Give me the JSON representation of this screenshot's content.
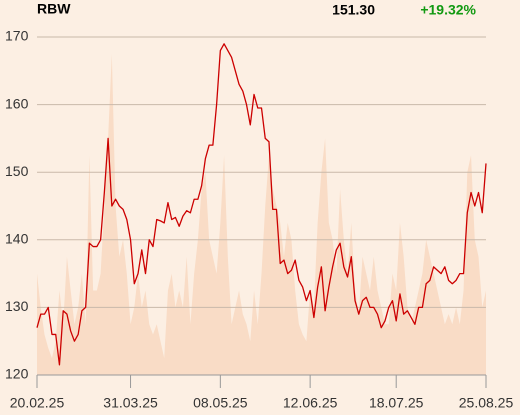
{
  "chart_data": {
    "type": "line",
    "title": "RBW",
    "last_price": "151.30",
    "change": "+19.32%",
    "change_color": "#119911",
    "categories": [
      "20.02.25",
      null,
      null,
      null,
      null,
      null,
      null,
      null,
      null,
      null,
      null,
      null,
      null,
      null,
      null,
      null,
      null,
      null,
      null,
      null,
      null,
      null,
      null,
      null,
      null,
      "31.03.25",
      null,
      null,
      null,
      null,
      null,
      null,
      null,
      null,
      null,
      null,
      null,
      null,
      null,
      null,
      null,
      null,
      null,
      null,
      null,
      null,
      null,
      null,
      null,
      "08.05.25",
      null,
      null,
      null,
      null,
      null,
      null,
      null,
      null,
      null,
      null,
      null,
      null,
      null,
      null,
      null,
      null,
      null,
      null,
      null,
      null,
      null,
      null,
      null,
      "12.06.25",
      null,
      null,
      null,
      null,
      null,
      null,
      null,
      null,
      null,
      null,
      null,
      null,
      null,
      null,
      null,
      null,
      null,
      null,
      null,
      null,
      null,
      null,
      "18.07.25",
      null,
      null,
      null,
      null,
      null,
      null,
      null,
      null,
      null,
      null,
      null,
      null,
      null,
      null,
      null,
      null,
      null,
      null,
      null,
      null,
      null,
      null,
      null,
      "25.08.25"
    ],
    "series": [
      {
        "name": "RBW",
        "color": "#cc0000",
        "values": [
          127,
          129,
          129,
          130,
          126,
          126,
          121.5,
          129.5,
          129,
          126.5,
          125,
          126,
          129.5,
          130,
          139.5,
          139,
          139,
          140,
          147,
          155,
          145,
          146,
          145,
          144.5,
          143,
          140,
          133.5,
          135,
          138.5,
          135,
          140,
          139,
          143,
          142.8,
          142.5,
          145.5,
          143,
          143.3,
          142,
          143.5,
          144.3,
          144,
          146,
          146,
          148,
          152,
          154,
          154,
          160,
          168,
          169,
          168,
          167,
          165,
          163,
          162,
          160,
          157,
          161.5,
          159.5,
          159.5,
          155,
          154.5,
          144.5,
          144.5,
          136.5,
          137,
          135,
          135.5,
          137,
          134,
          133,
          131,
          132.5,
          128.5,
          133,
          136,
          129.5,
          133,
          136,
          138.5,
          139.5,
          136,
          134.5,
          137.5,
          131,
          129,
          131,
          131.5,
          130,
          130,
          129,
          127,
          128,
          130,
          131,
          128,
          132,
          129,
          129.5,
          128.5,
          127.5,
          130,
          130,
          133.5,
          134,
          136,
          135.5,
          135,
          136,
          134,
          133.5,
          134,
          135,
          135,
          144,
          147,
          145,
          147,
          144,
          151.3
        ]
      },
      {
        "name": "Volume",
        "color": "#f9dcc6",
        "axis": "y2",
        "values": [
          30,
          20,
          12,
          8,
          5,
          10,
          25,
          15,
          35,
          25,
          15,
          20,
          30,
          15,
          65,
          25,
          25,
          30,
          50,
          70,
          95,
          50,
          35,
          40,
          30,
          15,
          20,
          30,
          20,
          25,
          15,
          12,
          15,
          10,
          5,
          25,
          30,
          20,
          25,
          20,
          35,
          15,
          30,
          40,
          55,
          60,
          40,
          35,
          30,
          45,
          65,
          35,
          15,
          20,
          25,
          18,
          15,
          10,
          25,
          15,
          30,
          50,
          65,
          55,
          50,
          45,
          35,
          45,
          40,
          25,
          15,
          12,
          10,
          25,
          20,
          45,
          60,
          70,
          45,
          40,
          30,
          55,
          40,
          30,
          45,
          25,
          18,
          35,
          30,
          25,
          35,
          25,
          20,
          15,
          15,
          30,
          25,
          45,
          35,
          20,
          15,
          20,
          25,
          30,
          40,
          35,
          30,
          25,
          20,
          15,
          18,
          15,
          20,
          15,
          25,
          60,
          65,
          40,
          35,
          20,
          25
        ]
      }
    ],
    "ylim": [
      120,
      170
    ],
    "yticks": [
      120,
      130,
      140,
      150,
      160,
      170
    ],
    "y2lim": [
      0,
      100
    ],
    "grid": true
  }
}
